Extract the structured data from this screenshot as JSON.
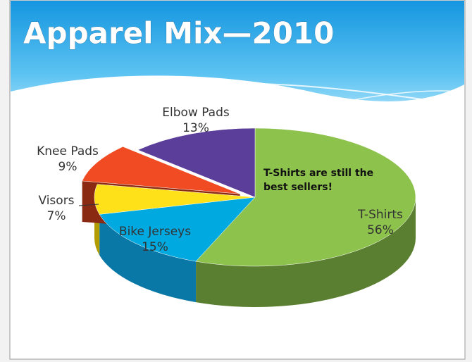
{
  "chart_data": {
    "type": "pie3d",
    "title": "Apparel Mix—2010",
    "annotation": "T-Shirts are still the best sellers!",
    "categories": [
      "T-Shirts",
      "Bike Jerseys",
      "Visors",
      "Knee Pads",
      "Elbow Pads"
    ],
    "values": [
      56,
      15,
      7,
      9,
      13
    ],
    "value_labels": [
      "56%",
      "15%",
      "7%",
      "9%",
      "13%"
    ],
    "colors": [
      "#8dc24c",
      "#00a9e0",
      "#ffe11a",
      "#f04b23",
      "#5b3d9a"
    ],
    "side_colors": [
      "#5b7f30",
      "#0a78a6",
      "#b39c00",
      "#8a2a12",
      "#3a2466"
    ],
    "exploded": [
      false,
      false,
      false,
      true,
      false
    ]
  }
}
